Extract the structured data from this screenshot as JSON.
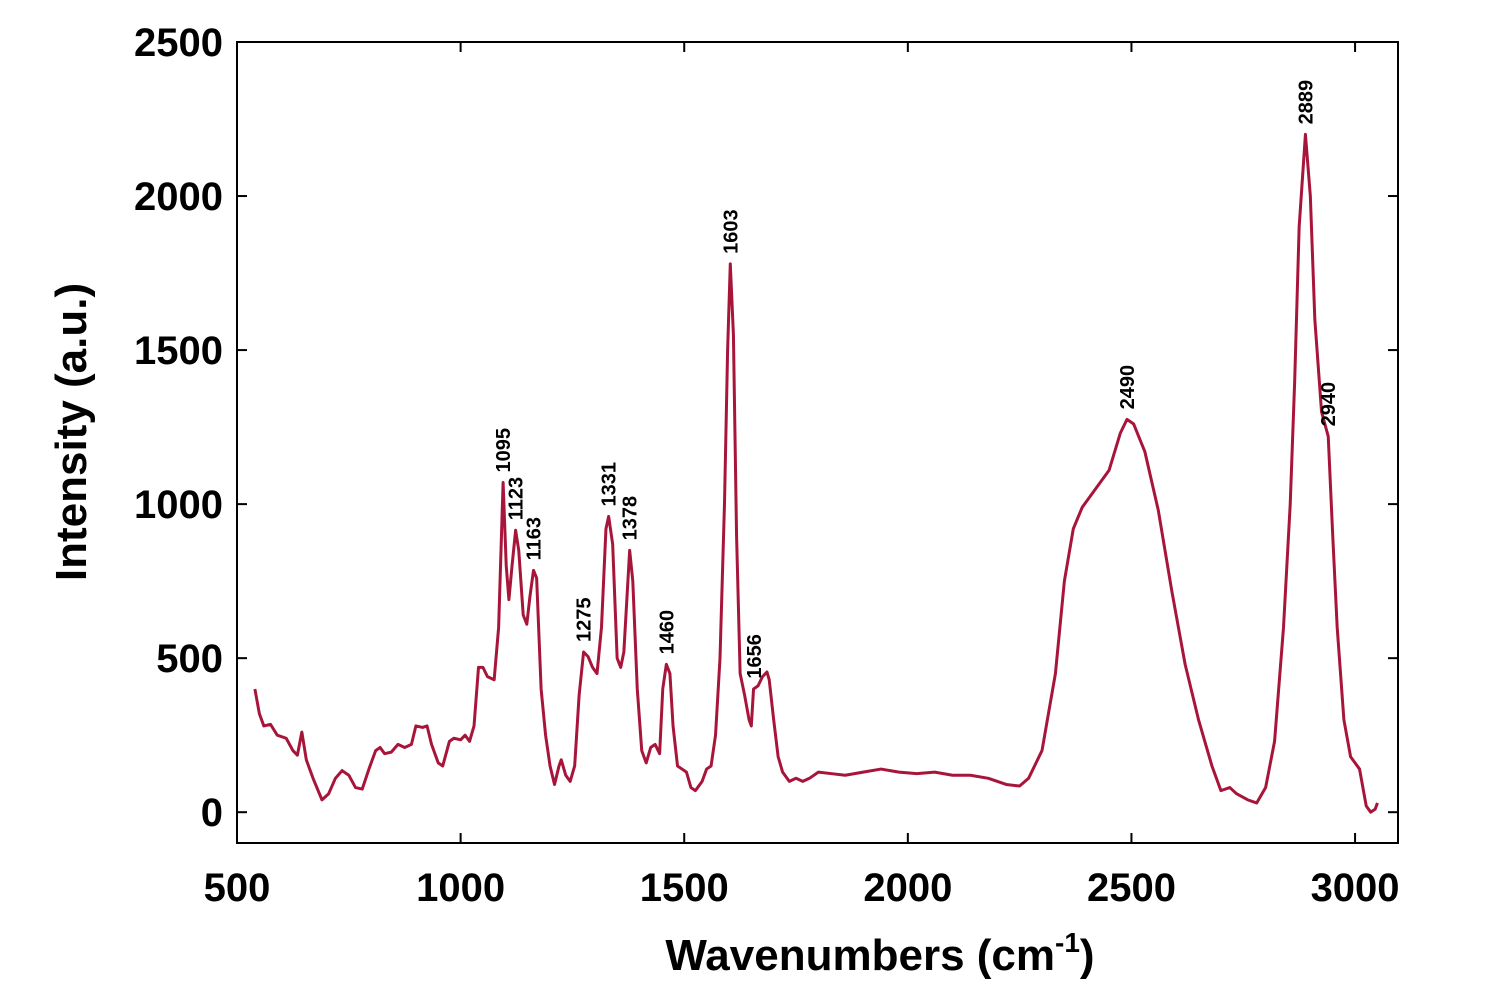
{
  "chart_data": {
    "type": "line",
    "xlabel": [
      "Wavenumbers (cm",
      "-1",
      ")"
    ],
    "ylabel": "Intensity (a.u.)",
    "color": "#a8153a",
    "xlim": [
      500,
      3096
    ],
    "ylim": [
      -100,
      2500
    ],
    "xticks": [
      500,
      1000,
      1500,
      2000,
      2500,
      3000
    ],
    "yticks": [
      0,
      500,
      1000,
      1500,
      2000,
      2500
    ],
    "annotations": [
      1095,
      1123,
      1163,
      1275,
      1331,
      1378,
      1460,
      1603,
      1656,
      2490,
      2889,
      2940
    ],
    "x": [
      540,
      550,
      560,
      575,
      590,
      610,
      625,
      635,
      645,
      655,
      670,
      690,
      705,
      720,
      735,
      750,
      765,
      780,
      795,
      810,
      820,
      830,
      845,
      860,
      875,
      890,
      900,
      915,
      925,
      935,
      950,
      960,
      975,
      985,
      1000,
      1010,
      1020,
      1030,
      1040,
      1050,
      1060,
      1075,
      1085,
      1095,
      1102,
      1108,
      1115,
      1123,
      1130,
      1140,
      1148,
      1155,
      1163,
      1170,
      1180,
      1190,
      1200,
      1210,
      1220,
      1225,
      1235,
      1245,
      1255,
      1265,
      1275,
      1285,
      1295,
      1305,
      1315,
      1325,
      1331,
      1340,
      1350,
      1358,
      1365,
      1378,
      1385,
      1395,
      1405,
      1415,
      1425,
      1435,
      1445,
      1452,
      1460,
      1468,
      1475,
      1485,
      1495,
      1505,
      1515,
      1525,
      1540,
      1550,
      1560,
      1570,
      1580,
      1590,
      1597,
      1603,
      1610,
      1617,
      1625,
      1635,
      1645,
      1650,
      1655,
      1665,
      1675,
      1685,
      1690,
      1700,
      1710,
      1720,
      1735,
      1750,
      1765,
      1780,
      1800,
      1830,
      1860,
      1900,
      1940,
      1980,
      2020,
      2060,
      2100,
      2140,
      2180,
      2220,
      2250,
      2270,
      2300,
      2330,
      2350,
      2370,
      2390,
      2420,
      2450,
      2475,
      2490,
      2505,
      2530,
      2560,
      2590,
      2620,
      2650,
      2680,
      2700,
      2720,
      2735,
      2760,
      2780,
      2800,
      2820,
      2840,
      2855,
      2865,
      2875,
      2889,
      2900,
      2910,
      2925,
      2940,
      2950,
      2960,
      2975,
      2990,
      3010,
      3025,
      3035,
      3045,
      3050
    ],
    "values": [
      400,
      320,
      280,
      285,
      250,
      240,
      200,
      185,
      260,
      170,
      110,
      40,
      60,
      110,
      135,
      120,
      80,
      75,
      140,
      200,
      210,
      190,
      195,
      220,
      210,
      220,
      280,
      275,
      280,
      220,
      160,
      150,
      230,
      240,
      235,
      250,
      230,
      280,
      470,
      470,
      440,
      430,
      600,
      1070,
      800,
      690,
      800,
      915,
      850,
      640,
      610,
      700,
      785,
      760,
      400,
      250,
      150,
      90,
      150,
      170,
      120,
      100,
      150,
      380,
      520,
      505,
      470,
      450,
      600,
      920,
      960,
      870,
      500,
      470,
      520,
      850,
      750,
      400,
      200,
      160,
      210,
      220,
      190,
      400,
      480,
      450,
      280,
      150,
      140,
      130,
      80,
      70,
      100,
      140,
      150,
      250,
      500,
      1000,
      1500,
      1780,
      1550,
      900,
      450,
      380,
      300,
      280,
      400,
      410,
      440,
      455,
      430,
      300,
      180,
      130,
      100,
      110,
      100,
      110,
      130,
      125,
      120,
      130,
      140,
      130,
      125,
      130,
      120,
      120,
      110,
      90,
      85,
      110,
      200,
      450,
      750,
      920,
      990,
      1050,
      1110,
      1230,
      1275,
      1260,
      1170,
      980,
      720,
      480,
      300,
      150,
      70,
      80,
      60,
      40,
      30,
      80,
      230,
      600,
      1000,
      1400,
      1900,
      2200,
      2000,
      1600,
      1300,
      1220,
      900,
      600,
      300,
      180,
      140,
      20,
      0,
      10,
      30
    ]
  }
}
